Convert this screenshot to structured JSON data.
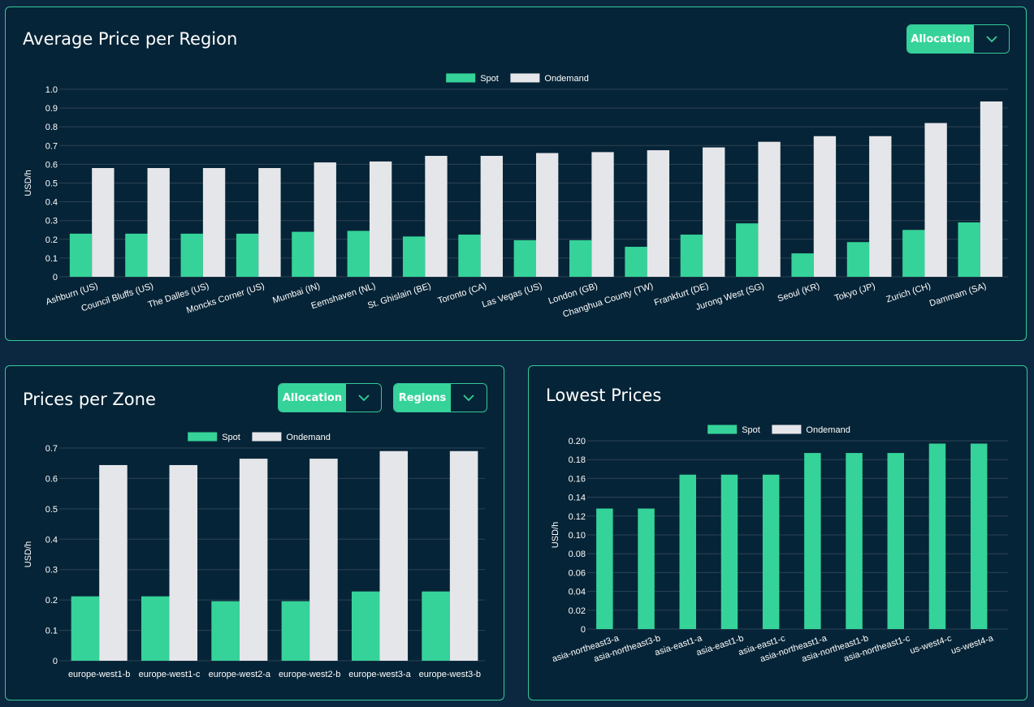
{
  "colors": {
    "spot": "#35d399",
    "ondemand": "#e5e6ea",
    "grid": "#2c4254",
    "axis_text": "#ffffff"
  },
  "region_card": {
    "title": "Average Price per Region",
    "allocation_label": "Allocation",
    "dropdown_icon": "chevron-down-icon"
  },
  "zone_card": {
    "title": "Prices per Zone",
    "allocation_label": "Allocation",
    "regions_label": "Regions",
    "dropdown_icon": "chevron-down-icon"
  },
  "lowest_card": {
    "title": "Lowest Prices"
  },
  "chart_data": [
    {
      "id": "region",
      "type": "bar",
      "ylabel": "USD/h",
      "ylim": [
        0,
        1.0
      ],
      "yticks": [
        "0",
        "0.1",
        "0.2",
        "0.3",
        "0.4",
        "0.5",
        "0.6",
        "0.7",
        "0.8",
        "0.9",
        "1.0"
      ],
      "legend_position": "top",
      "grid": true,
      "categories": [
        "Ashburn (US)",
        "Council Bluffs (US)",
        "The Dalles (US)",
        "Moncks Corner (US)",
        "Mumbai (IN)",
        "Eemshaven (NL)",
        "St. Ghislain (BE)",
        "Toronto (CA)",
        "Las Vegas (US)",
        "London (GB)",
        "Changhua County (TW)",
        "Frankfurt (DE)",
        "Jurong West (SG)",
        "Seoul (KR)",
        "Tokyo (JP)",
        "Zurich (CH)",
        "Dammam (SA)"
      ],
      "series": [
        {
          "name": "Spot",
          "values": [
            0.23,
            0.23,
            0.23,
            0.23,
            0.24,
            0.245,
            0.215,
            0.225,
            0.195,
            0.195,
            0.16,
            0.225,
            0.285,
            0.125,
            0.185,
            0.25,
            0.29
          ]
        },
        {
          "name": "Ondemand",
          "values": [
            0.58,
            0.58,
            0.58,
            0.58,
            0.61,
            0.615,
            0.645,
            0.645,
            0.66,
            0.665,
            0.675,
            0.69,
            0.72,
            0.75,
            0.75,
            0.82,
            0.935
          ]
        }
      ]
    },
    {
      "id": "zone",
      "type": "bar",
      "ylabel": "USD/h",
      "ylim": [
        0,
        0.7
      ],
      "yticks": [
        "0",
        "0.1",
        "0.2",
        "0.3",
        "0.4",
        "0.5",
        "0.6",
        "0.7"
      ],
      "legend_position": "top",
      "grid": true,
      "categories": [
        "europe-west1-b",
        "europe-west1-c",
        "europe-west2-a",
        "europe-west2-b",
        "europe-west3-a",
        "europe-west3-b"
      ],
      "series": [
        {
          "name": "Spot",
          "values": [
            0.212,
            0.212,
            0.196,
            0.196,
            0.228,
            0.228
          ]
        },
        {
          "name": "Ondemand",
          "values": [
            0.644,
            0.644,
            0.665,
            0.665,
            0.69,
            0.69
          ]
        }
      ]
    },
    {
      "id": "lowest",
      "type": "bar",
      "ylabel": "USD/h",
      "ylim": [
        0,
        0.2
      ],
      "yticks": [
        "0",
        "0.02",
        "0.04",
        "0.06",
        "0.08",
        "0.10",
        "0.12",
        "0.14",
        "0.16",
        "0.18",
        "0.20"
      ],
      "legend_position": "top",
      "grid": true,
      "categories": [
        "asia-northeast3-a",
        "asia-northeast3-b",
        "asia-east1-a",
        "asia-east1-b",
        "asia-east1-c",
        "asia-northeast1-a",
        "asia-northeast1-b",
        "asia-northeast1-c",
        "us-west4-c",
        "us-west4-a"
      ],
      "series": [
        {
          "name": "Spot",
          "values": [
            0.128,
            0.128,
            0.164,
            0.164,
            0.164,
            0.187,
            0.187,
            0.187,
            0.197,
            0.197
          ]
        },
        {
          "name": "Ondemand",
          "values": [
            0,
            0,
            0,
            0,
            0,
            0,
            0,
            0,
            0,
            0
          ]
        }
      ]
    }
  ]
}
